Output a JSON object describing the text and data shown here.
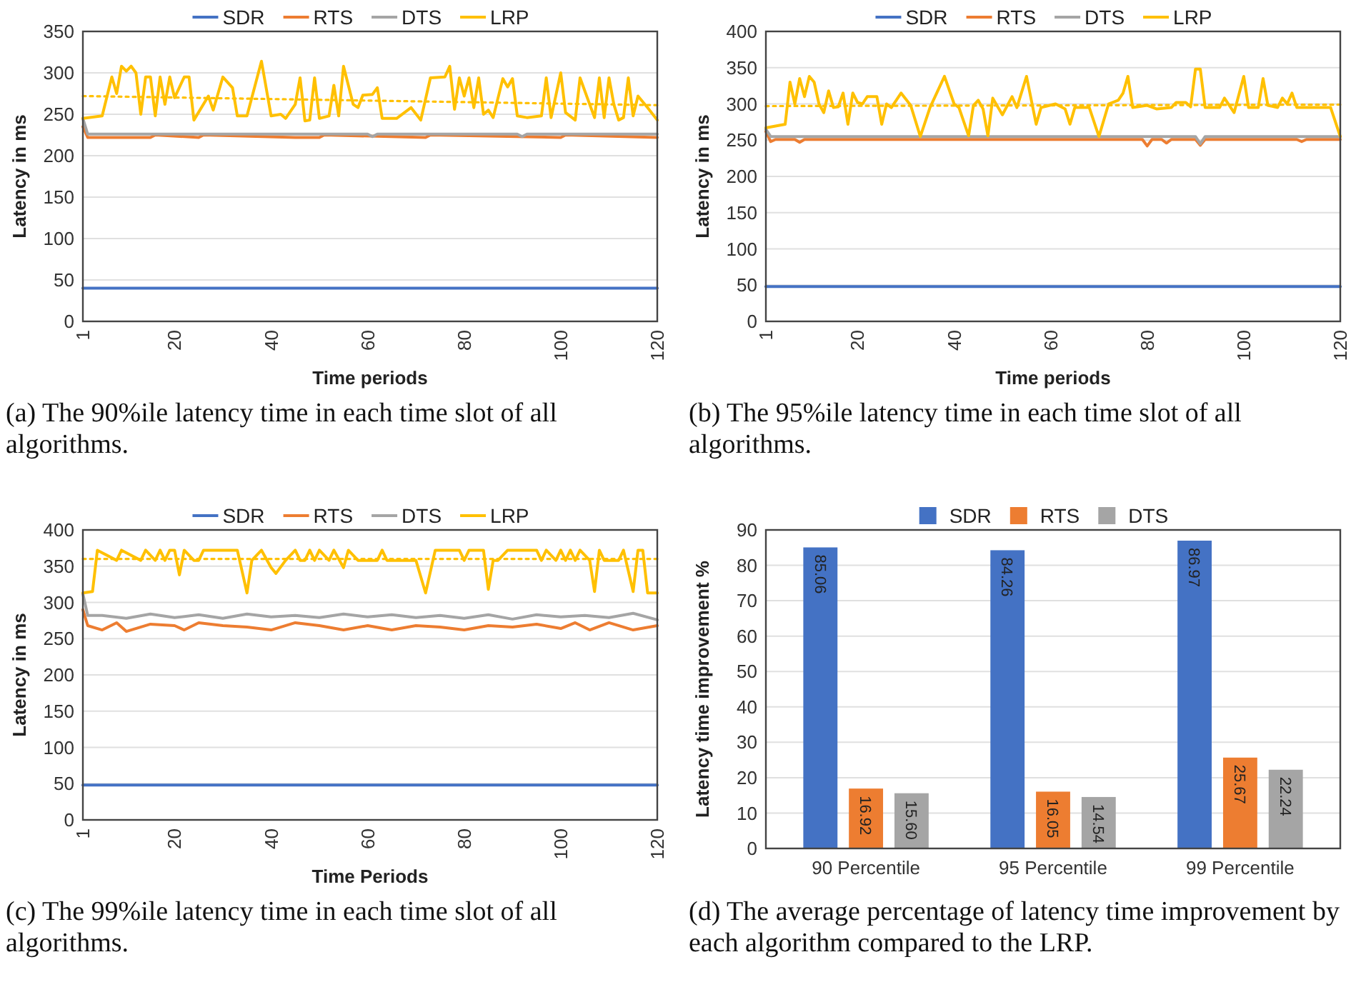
{
  "chart_data": [
    {
      "type": "line",
      "xlabel": "Time periods",
      "ylabel": "Latency in ms",
      "xlim": [
        1,
        120
      ],
      "xticks": [
        1,
        20,
        40,
        60,
        80,
        100,
        120
      ],
      "ylim": [
        0,
        350
      ],
      "yticks": [
        0,
        50,
        100,
        150,
        200,
        250,
        300,
        350
      ],
      "grid": "y",
      "legend": "top",
      "annotations": [
        "(a) The 90%ile latency time in each time slot of all algorithms."
      ],
      "series": [
        {
          "name": "SDR",
          "color": "#4472c4",
          "x": [
            1,
            120
          ],
          "values": [
            40,
            40
          ]
        },
        {
          "name": "RTS",
          "color": "#ed7d31",
          "x": [
            1,
            2,
            15,
            16,
            25,
            26,
            45,
            50,
            51,
            72,
            73,
            100,
            101,
            120
          ],
          "values": [
            235,
            222,
            222,
            225,
            222,
            225,
            222,
            222,
            225,
            222,
            225,
            222,
            225,
            222
          ]
        },
        {
          "name": "DTS",
          "color": "#a5a5a5",
          "x": [
            1,
            2,
            60,
            61,
            62,
            91,
            92,
            93,
            120
          ],
          "values": [
            245,
            226,
            226,
            223,
            226,
            226,
            223,
            226,
            226
          ]
        },
        {
          "name": "LRP",
          "color": "#ffc000",
          "x": [
            1,
            5,
            7,
            8,
            9,
            10,
            11,
            12,
            13,
            14,
            15,
            16,
            17,
            18,
            19,
            20,
            22,
            23,
            24,
            27,
            28,
            30,
            32,
            33,
            35,
            38,
            40,
            42,
            43,
            45,
            46,
            47,
            48,
            49,
            50,
            52,
            53,
            54,
            55,
            57,
            58,
            59,
            61,
            62,
            63,
            66,
            69,
            71,
            73,
            76,
            77,
            78,
            79,
            80,
            81,
            82,
            83,
            84,
            85,
            86,
            88,
            89,
            90,
            91,
            93,
            96,
            97,
            98,
            100,
            101,
            103,
            104,
            106,
            107,
            108,
            109,
            110,
            111,
            112,
            113,
            114,
            115,
            116,
            118,
            120
          ],
          "values": [
            245,
            248,
            295,
            275,
            308,
            302,
            308,
            300,
            250,
            295,
            295,
            248,
            295,
            262,
            295,
            270,
            295,
            295,
            243,
            272,
            255,
            295,
            282,
            248,
            248,
            314,
            248,
            250,
            245,
            262,
            294,
            242,
            243,
            294,
            245,
            248,
            285,
            248,
            308,
            262,
            258,
            273,
            274,
            282,
            245,
            245,
            258,
            243,
            294,
            295,
            308,
            256,
            294,
            272,
            294,
            258,
            294,
            250,
            255,
            246,
            293,
            283,
            293,
            248,
            246,
            248,
            294,
            246,
            300,
            252,
            243,
            294,
            262,
            246,
            294,
            246,
            294,
            262,
            243,
            246,
            294,
            248,
            272,
            258,
            243
          ]
        },
        {
          "type": "line",
          "color": "#ffc000",
          "line_style": "dotted",
          "x": [
            1,
            120
          ],
          "values": [
            272,
            261
          ]
        }
      ]
    },
    {
      "type": "line",
      "xlabel": "Time periods",
      "ylabel": "Latency in ms",
      "xlim": [
        1,
        120
      ],
      "xticks": [
        1,
        20,
        40,
        60,
        80,
        100,
        120
      ],
      "ylim": [
        0,
        400
      ],
      "yticks": [
        0,
        50,
        100,
        150,
        200,
        250,
        300,
        350,
        400
      ],
      "grid": "y",
      "legend": "top",
      "annotations": [
        "(b) The 95%ile latency time in each time slot of all algorithms."
      ],
      "series": [
        {
          "name": "SDR",
          "color": "#4472c4",
          "x": [
            1,
            120
          ],
          "values": [
            48,
            48
          ]
        },
        {
          "name": "RTS",
          "color": "#ed7d31",
          "x": [
            1,
            2,
            3,
            7,
            8,
            9,
            79,
            80,
            81,
            83,
            84,
            85,
            90,
            91,
            92,
            111,
            112,
            113,
            120
          ],
          "values": [
            262,
            248,
            251,
            251,
            247,
            251,
            251,
            242,
            251,
            251,
            246,
            251,
            251,
            243,
            251,
            251,
            248,
            251,
            251
          ]
        },
        {
          "name": "DTS",
          "color": "#a5a5a5",
          "x": [
            1,
            2,
            90,
            91,
            92,
            120
          ],
          "values": [
            265,
            255,
            255,
            245,
            255,
            255
          ]
        },
        {
          "name": "LRP",
          "color": "#ffc000",
          "x": [
            1,
            5,
            6,
            7,
            8,
            9,
            10,
            11,
            12,
            13,
            14,
            15,
            16,
            17,
            18,
            19,
            20,
            21,
            22,
            24,
            25,
            26,
            27,
            29,
            31,
            33,
            35,
            38,
            40,
            41,
            43,
            44,
            45,
            46,
            47,
            48,
            50,
            52,
            53,
            55,
            57,
            58,
            61,
            63,
            64,
            65,
            68,
            70,
            72,
            74,
            75,
            76,
            77,
            80,
            82,
            85,
            86,
            88,
            89,
            90,
            91,
            92,
            95,
            96,
            98,
            100,
            101,
            103,
            104,
            105,
            107,
            108,
            109,
            110,
            111,
            115,
            118,
            120
          ],
          "values": [
            267,
            272,
            330,
            300,
            335,
            310,
            338,
            330,
            300,
            288,
            318,
            295,
            296,
            315,
            272,
            315,
            302,
            300,
            310,
            310,
            272,
            300,
            295,
            315,
            298,
            255,
            295,
            338,
            300,
            295,
            256,
            298,
            305,
            293,
            256,
            308,
            285,
            310,
            295,
            338,
            272,
            295,
            300,
            293,
            272,
            295,
            295,
            255,
            300,
            305,
            315,
            338,
            295,
            298,
            293,
            295,
            302,
            302,
            296,
            348,
            348,
            295,
            295,
            308,
            288,
            338,
            295,
            295,
            335,
            298,
            295,
            308,
            300,
            315,
            295,
            295,
            295,
            255
          ]
        },
        {
          "type": "line",
          "color": "#ffc000",
          "line_style": "dotted",
          "x": [
            1,
            120
          ],
          "values": [
            297,
            299
          ]
        }
      ]
    },
    {
      "type": "line",
      "xlabel": "Time Periods",
      "ylabel": "Latency in ms",
      "xlim": [
        1,
        120
      ],
      "xticks": [
        1,
        20,
        40,
        60,
        80,
        100,
        120
      ],
      "ylim": [
        0,
        400
      ],
      "yticks": [
        0,
        50,
        100,
        150,
        200,
        250,
        300,
        350,
        400
      ],
      "grid": "y",
      "legend": "top",
      "annotations": [
        "(c) The 99%ile latency time in each time slot of all algorithms."
      ],
      "series": [
        {
          "name": "SDR",
          "color": "#4472c4",
          "x": [
            1,
            120
          ],
          "values": [
            48,
            48
          ]
        },
        {
          "name": "RTS",
          "color": "#ed7d31",
          "x": [
            1,
            2,
            5,
            8,
            10,
            15,
            20,
            22,
            25,
            30,
            35,
            40,
            45,
            50,
            55,
            60,
            65,
            70,
            75,
            80,
            85,
            90,
            95,
            100,
            103,
            106,
            110,
            115,
            120
          ],
          "values": [
            290,
            268,
            262,
            272,
            260,
            270,
            268,
            262,
            272,
            268,
            266,
            262,
            272,
            268,
            262,
            268,
            262,
            268,
            266,
            262,
            268,
            266,
            270,
            264,
            272,
            262,
            272,
            262,
            268
          ]
        },
        {
          "name": "DTS",
          "color": "#a5a5a5",
          "x": [
            1,
            2,
            5,
            10,
            15,
            20,
            25,
            30,
            35,
            40,
            45,
            50,
            55,
            60,
            65,
            70,
            75,
            80,
            85,
            90,
            95,
            100,
            105,
            110,
            115,
            120
          ],
          "values": [
            312,
            282,
            282,
            278,
            284,
            279,
            283,
            278,
            284,
            280,
            282,
            279,
            284,
            280,
            283,
            279,
            282,
            278,
            283,
            277,
            283,
            280,
            282,
            279,
            285,
            276
          ]
        },
        {
          "name": "LRP",
          "color": "#ffc000",
          "x": [
            1,
            3,
            4,
            8,
            9,
            13,
            14,
            16,
            17,
            18,
            19,
            20,
            21,
            22,
            24,
            25,
            26,
            33,
            35,
            36,
            38,
            40,
            41,
            43,
            45,
            46,
            47,
            48,
            49,
            50,
            52,
            53,
            55,
            56,
            58,
            62,
            63,
            64,
            70,
            72,
            74,
            79,
            80,
            81,
            84,
            85,
            86,
            87,
            89,
            95,
            96,
            97,
            99,
            100,
            101,
            102,
            103,
            104,
            106,
            107,
            108,
            109,
            112,
            113,
            115,
            116,
            117,
            118,
            120
          ],
          "values": [
            313,
            315,
            372,
            358,
            372,
            358,
            372,
            358,
            372,
            358,
            372,
            372,
            338,
            372,
            358,
            358,
            372,
            372,
            313,
            358,
            372,
            348,
            340,
            358,
            372,
            358,
            358,
            372,
            358,
            372,
            358,
            372,
            348,
            372,
            358,
            358,
            372,
            358,
            358,
            313,
            372,
            372,
            358,
            372,
            372,
            318,
            358,
            358,
            372,
            372,
            358,
            372,
            358,
            372,
            358,
            372,
            358,
            372,
            358,
            315,
            372,
            358,
            358,
            372,
            315,
            372,
            372,
            313,
            313
          ]
        },
        {
          "type": "line",
          "color": "#ffc000",
          "line_style": "dotted",
          "x": [
            1,
            120
          ],
          "values": [
            360,
            360
          ]
        }
      ]
    },
    {
      "type": "bar",
      "ylabel": "Latency time improvement %",
      "categories": [
        "90 Percentile",
        "95 Percentile",
        "99 Percentile"
      ],
      "ylim": [
        0,
        90
      ],
      "yticks": [
        0,
        10,
        20,
        30,
        40,
        50,
        60,
        70,
        80,
        90
      ],
      "grid": "y",
      "legend": "top",
      "annotations": [
        "(d) The average percentage of latency time improvement by each algorithm compared to the LRP."
      ],
      "series": [
        {
          "name": "SDR",
          "color": "#4472c4",
          "values": [
            85.06,
            84.26,
            86.97
          ],
          "value_labels": [
            "85.06",
            "84.26",
            "86.97"
          ]
        },
        {
          "name": "RTS",
          "color": "#ed7d31",
          "values": [
            16.92,
            16.05,
            25.67
          ],
          "value_labels": [
            "16.92",
            "16.05",
            "25.67"
          ]
        },
        {
          "name": "DTS",
          "color": "#a5a5a5",
          "values": [
            15.6,
            14.54,
            22.24
          ],
          "value_labels": [
            "15.60",
            "14.54",
            "22.24"
          ]
        }
      ]
    }
  ]
}
